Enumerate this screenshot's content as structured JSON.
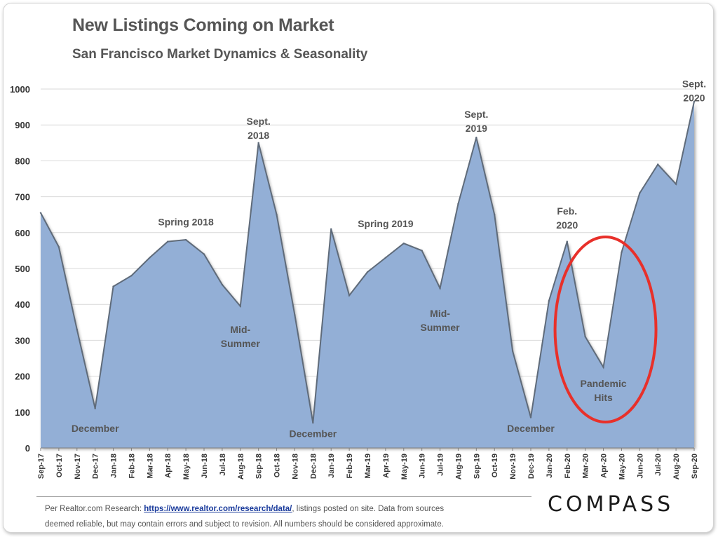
{
  "header": {
    "title": "New Listings Coming on Market",
    "subtitle": "San Francisco Market Dynamics  & Seasonality"
  },
  "chart_data": {
    "type": "area",
    "x": [
      "Sep-17",
      "Oct-17",
      "Nov-17",
      "Dec-17",
      "Jan-18",
      "Feb-18",
      "Mar-18",
      "Apr-18",
      "May-18",
      "Jun-18",
      "Jul-18",
      "Aug-18",
      "Sep-18",
      "Oct-18",
      "Nov-18",
      "Dec-18",
      "Jan-19",
      "Feb-19",
      "Mar-19",
      "Apr-19",
      "May-19",
      "Jun-19",
      "Jul-19",
      "Aug-19",
      "Sep-19",
      "Oct-19",
      "Nov-19",
      "Dec-19",
      "Jan-20",
      "Feb-20",
      "Mar-20",
      "Apr-20",
      "May-20",
      "Jun-20",
      "Jul-20",
      "Aug-20",
      "Sep-20"
    ],
    "values": [
      655,
      560,
      330,
      110,
      450,
      480,
      530,
      575,
      580,
      540,
      455,
      395,
      850,
      650,
      370,
      70,
      610,
      425,
      490,
      530,
      570,
      550,
      445,
      680,
      865,
      650,
      270,
      85,
      410,
      575,
      310,
      225,
      545,
      710,
      790,
      735,
      965
    ],
    "ylim": [
      0,
      1000
    ],
    "yticks": [
      0,
      100,
      200,
      300,
      400,
      500,
      600,
      700,
      800,
      900,
      1000
    ],
    "grid": true,
    "fill_color": "#93afd6",
    "line_color": "#5f6b7a",
    "annotations": [
      {
        "text": "Spring 2018",
        "x": "May-18",
        "y": 620
      },
      {
        "text": "Sept.\n2018",
        "x": "Sep-18",
        "y": 900
      },
      {
        "text": "Mid-\nSummer",
        "x": "Aug-18",
        "y": 320
      },
      {
        "text": "December",
        "x": "Dec-17",
        "y": 45
      },
      {
        "text": "December",
        "x": "Dec-18",
        "y": 30
      },
      {
        "text": "Spring 2019",
        "x": "Apr-19",
        "y": 615
      },
      {
        "text": "Sept.\n2019",
        "x": "Sep-19",
        "y": 920
      },
      {
        "text": "Mid-\nSummer",
        "x": "Jul-19",
        "y": 365
      },
      {
        "text": "December",
        "x": "Dec-19",
        "y": 45
      },
      {
        "text": "Feb.\n2020",
        "x": "Feb-20",
        "y": 650
      },
      {
        "text": "Pandemic\nHits",
        "x": "Apr-20",
        "y": 170
      },
      {
        "text": "Sept.\n2020",
        "x": "Sep-20",
        "y": 1005
      }
    ],
    "highlight": {
      "shape": "ellipse",
      "color": "#e8302a",
      "center_x": "Apr-20",
      "center_y": 330
    }
  },
  "footer": {
    "text_before": "Per Realtor.com  Research:  ",
    "link": "https://www.realtor.com/research/data/",
    "text_after": ", listings  posted on site. Data from sources",
    "line2": "deemed reliable,  but may contain errors and subject to revision.  All numbers should  be considered approximate.",
    "logo": "COMPASS"
  }
}
